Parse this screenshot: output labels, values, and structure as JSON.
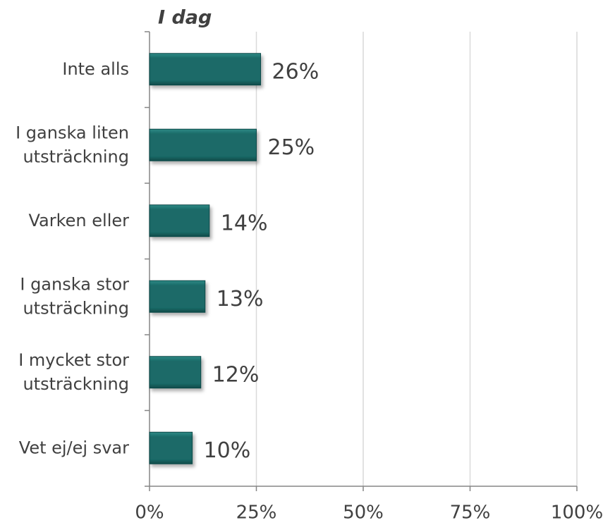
{
  "chart_data": {
    "type": "bar",
    "orientation": "horizontal",
    "title": "I dag",
    "categories": [
      [
        "Inte alls"
      ],
      [
        "I ganska liten",
        "utsträckning"
      ],
      [
        "Varken eller"
      ],
      [
        "I ganska stor",
        "utsträckning"
      ],
      [
        "I mycket stor",
        "utsträckning"
      ],
      [
        "Vet ej/ej svar"
      ]
    ],
    "values": [
      26,
      25,
      14,
      13,
      12,
      10
    ],
    "value_labels": [
      "26%",
      "25%",
      "14%",
      "13%",
      "12%",
      "10%"
    ],
    "color": "#1a6b68",
    "xlim": [
      0,
      100
    ],
    "xticks": [
      {
        "value": 0,
        "label": "0%"
      },
      {
        "value": 25,
        "label": "25%"
      },
      {
        "value": 50,
        "label": "50%"
      },
      {
        "value": 75,
        "label": "75%"
      },
      {
        "value": 100,
        "label": "100%"
      }
    ],
    "grid": true
  }
}
